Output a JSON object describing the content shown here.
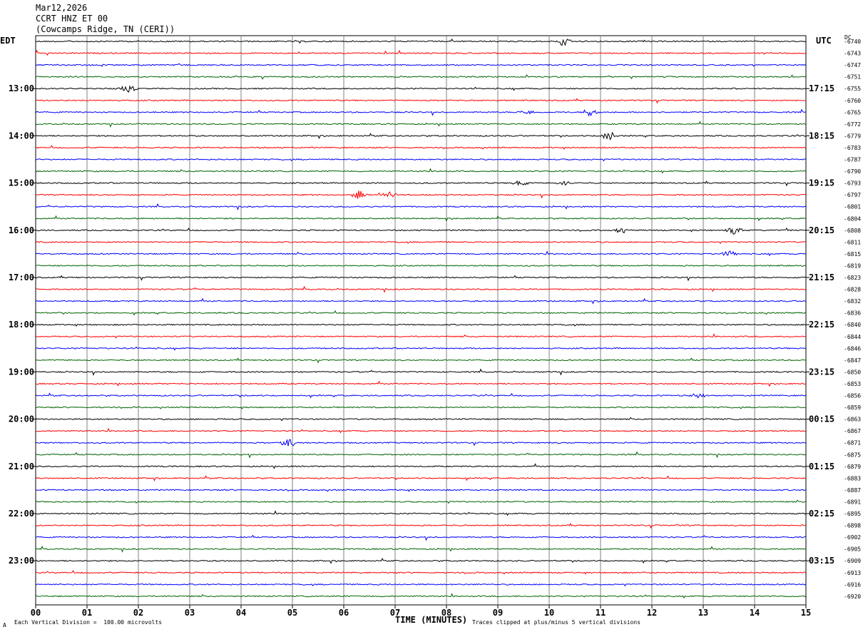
{
  "header": {
    "date": "Mar12,2026",
    "station": "CCRT HNZ ET 00",
    "location": "(Cowcamps Ridge, TN (CERI))"
  },
  "left_axis_title": "EDT",
  "right_axis_title": "UTC",
  "dc_label": "DC",
  "footer": {
    "scale_note": "Each Vertical Division =  100.00 microvolts",
    "clip_note": "Traces clipped at plus/minus 5 vertical divisions",
    "corner_mark": "A"
  },
  "colors": {
    "trace_cycle": [
      "#000000",
      "#ff0000",
      "#0000ff",
      "#006400"
    ],
    "grid": "#808080"
  },
  "chart_data": {
    "type": "line",
    "title": "CCRT HNZ ET 00",
    "xlabel": "TIME (MINUTES)",
    "ylabel": "",
    "xlim": [
      0,
      15
    ],
    "x_ticks": [
      "00",
      "01",
      "02",
      "03",
      "04",
      "05",
      "06",
      "07",
      "08",
      "09",
      "10",
      "11",
      "12",
      "13",
      "14",
      "15"
    ],
    "left_hour_labels": [
      "13:00",
      "14:00",
      "15:00",
      "16:00",
      "17:00",
      "18:00",
      "19:00",
      "20:00",
      "21:00",
      "22:00",
      "23:00"
    ],
    "right_hour_labels": [
      "17:15",
      "18:15",
      "19:15",
      "20:15",
      "21:15",
      "22:15",
      "23:15",
      "00:15",
      "01:15",
      "02:15",
      "03:15"
    ],
    "trace_dc_offsets": [
      "-6740",
      "-6743",
      "-6747",
      "-6751",
      "-6755",
      "-6760",
      "-6765",
      "-6772",
      "-6779",
      "-6783",
      "-6787",
      "-6790",
      "-6793",
      "-6797",
      "-6801",
      "-6804",
      "-6808",
      "-6811",
      "-6815",
      "-6819",
      "-6823",
      "-6828",
      "-6832",
      "-6836",
      "-6840",
      "-6844",
      "-6846",
      "-6847",
      "-6850",
      "-6853",
      "-6856",
      "-6859",
      "-6863",
      "-6867",
      "-6871",
      "-6875",
      "-6879",
      "-6883",
      "-6887",
      "-6891",
      "-6895",
      "-6898",
      "-6902",
      "-6905",
      "-6909",
      "-6913",
      "-6916",
      "-6920"
    ],
    "events": [
      {
        "trace": 0,
        "minute": 10.3,
        "amplitude": 4
      },
      {
        "trace": 4,
        "minute": 1.8,
        "amplitude": 3
      },
      {
        "trace": 6,
        "minute": 10.8,
        "amplitude": 3
      },
      {
        "trace": 6,
        "minute": 9.55,
        "amplitude": 2
      },
      {
        "trace": 8,
        "minute": 11.15,
        "amplitude": 3
      },
      {
        "trace": 12,
        "minute": 9.45,
        "amplitude": 2
      },
      {
        "trace": 12,
        "minute": 10.3,
        "amplitude": 2
      },
      {
        "trace": 13,
        "minute": 6.3,
        "amplitude": 3
      },
      {
        "trace": 13,
        "minute": 6.9,
        "amplitude": 2
      },
      {
        "trace": 16,
        "minute": 13.6,
        "amplitude": 3
      },
      {
        "trace": 16,
        "minute": 11.4,
        "amplitude": 2
      },
      {
        "trace": 18,
        "minute": 13.5,
        "amplitude": 2
      },
      {
        "trace": 30,
        "minute": 12.9,
        "amplitude": 2
      },
      {
        "trace": 34,
        "minute": 4.9,
        "amplitude": 4
      }
    ]
  }
}
